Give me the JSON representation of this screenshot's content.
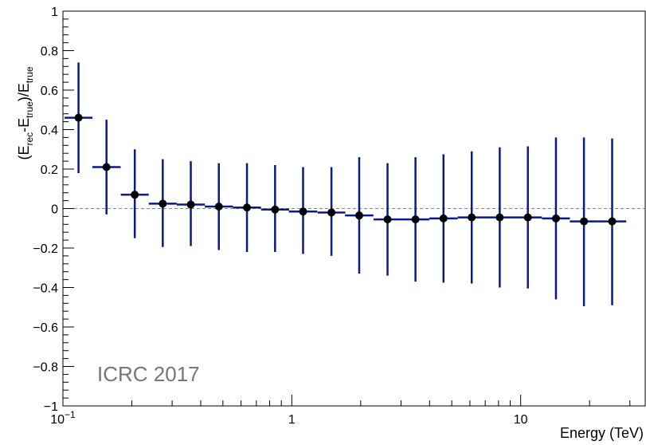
{
  "chart_data": {
    "type": "scatter",
    "title": "",
    "xlabel": "Energy (TeV)",
    "ylabel_parts": [
      "(E",
      "rec",
      "-E",
      "true",
      ")/E",
      "true"
    ],
    "xscale": "log",
    "xlim": [
      0.1,
      35
    ],
    "ylim": [
      -1,
      1
    ],
    "x_major_ticks": [
      0.1,
      1,
      10
    ],
    "x_tick_labels": [
      {
        "base": "10",
        "exp": "−1"
      },
      {
        "base": "1",
        "exp": ""
      },
      {
        "base": "10",
        "exp": ""
      }
    ],
    "y_major_ticks": [
      -1,
      -0.8,
      -0.6,
      -0.4,
      -0.2,
      0,
      0.2,
      0.4,
      0.6,
      0.8,
      1
    ],
    "y_tick_labels": [
      "−1",
      "−0.8",
      "−0.6",
      "−0.4",
      "−0.2",
      "0",
      "0.2",
      "0.4",
      "0.6",
      "0.8",
      "1"
    ],
    "reference_line": 0,
    "annotation": "ICRC 2017",
    "colors": {
      "errorbar": "#0a1a8c",
      "marker": "#000000",
      "reference": "#888888",
      "annotation": "#777777"
    },
    "series": [
      {
        "points": [
          {
            "x": 0.117,
            "y": 0.46,
            "ylo": 0.18,
            "yhi": 0.74
          },
          {
            "x": 0.155,
            "y": 0.21,
            "ylo": -0.03,
            "yhi": 0.45
          },
          {
            "x": 0.206,
            "y": 0.07,
            "ylo": -0.15,
            "yhi": 0.3
          },
          {
            "x": 0.273,
            "y": 0.025,
            "ylo": -0.195,
            "yhi": 0.25
          },
          {
            "x": 0.362,
            "y": 0.02,
            "ylo": -0.19,
            "yhi": 0.24
          },
          {
            "x": 0.48,
            "y": 0.01,
            "ylo": -0.21,
            "yhi": 0.23
          },
          {
            "x": 0.637,
            "y": 0.005,
            "ylo": -0.22,
            "yhi": 0.23
          },
          {
            "x": 0.845,
            "y": -0.005,
            "ylo": -0.22,
            "yhi": 0.22
          },
          {
            "x": 1.12,
            "y": -0.015,
            "ylo": -0.23,
            "yhi": 0.21
          },
          {
            "x": 1.49,
            "y": -0.02,
            "ylo": -0.24,
            "yhi": 0.21
          },
          {
            "x": 1.97,
            "y": -0.035,
            "ylo": -0.33,
            "yhi": 0.26
          },
          {
            "x": 2.62,
            "y": -0.055,
            "ylo": -0.34,
            "yhi": 0.23
          },
          {
            "x": 3.47,
            "y": -0.055,
            "ylo": -0.37,
            "yhi": 0.26
          },
          {
            "x": 4.6,
            "y": -0.05,
            "ylo": -0.375,
            "yhi": 0.275
          },
          {
            "x": 6.11,
            "y": -0.045,
            "ylo": -0.38,
            "yhi": 0.29
          },
          {
            "x": 8.1,
            "y": -0.045,
            "ylo": -0.4,
            "yhi": 0.31
          },
          {
            "x": 10.75,
            "y": -0.045,
            "ylo": -0.405,
            "yhi": 0.315
          },
          {
            "x": 14.26,
            "y": -0.05,
            "ylo": -0.46,
            "yhi": 0.36
          },
          {
            "x": 18.9,
            "y": -0.065,
            "ylo": -0.495,
            "yhi": 0.36
          },
          {
            "x": 25.1,
            "y": -0.065,
            "ylo": -0.49,
            "yhi": 0.355
          }
        ]
      }
    ]
  }
}
